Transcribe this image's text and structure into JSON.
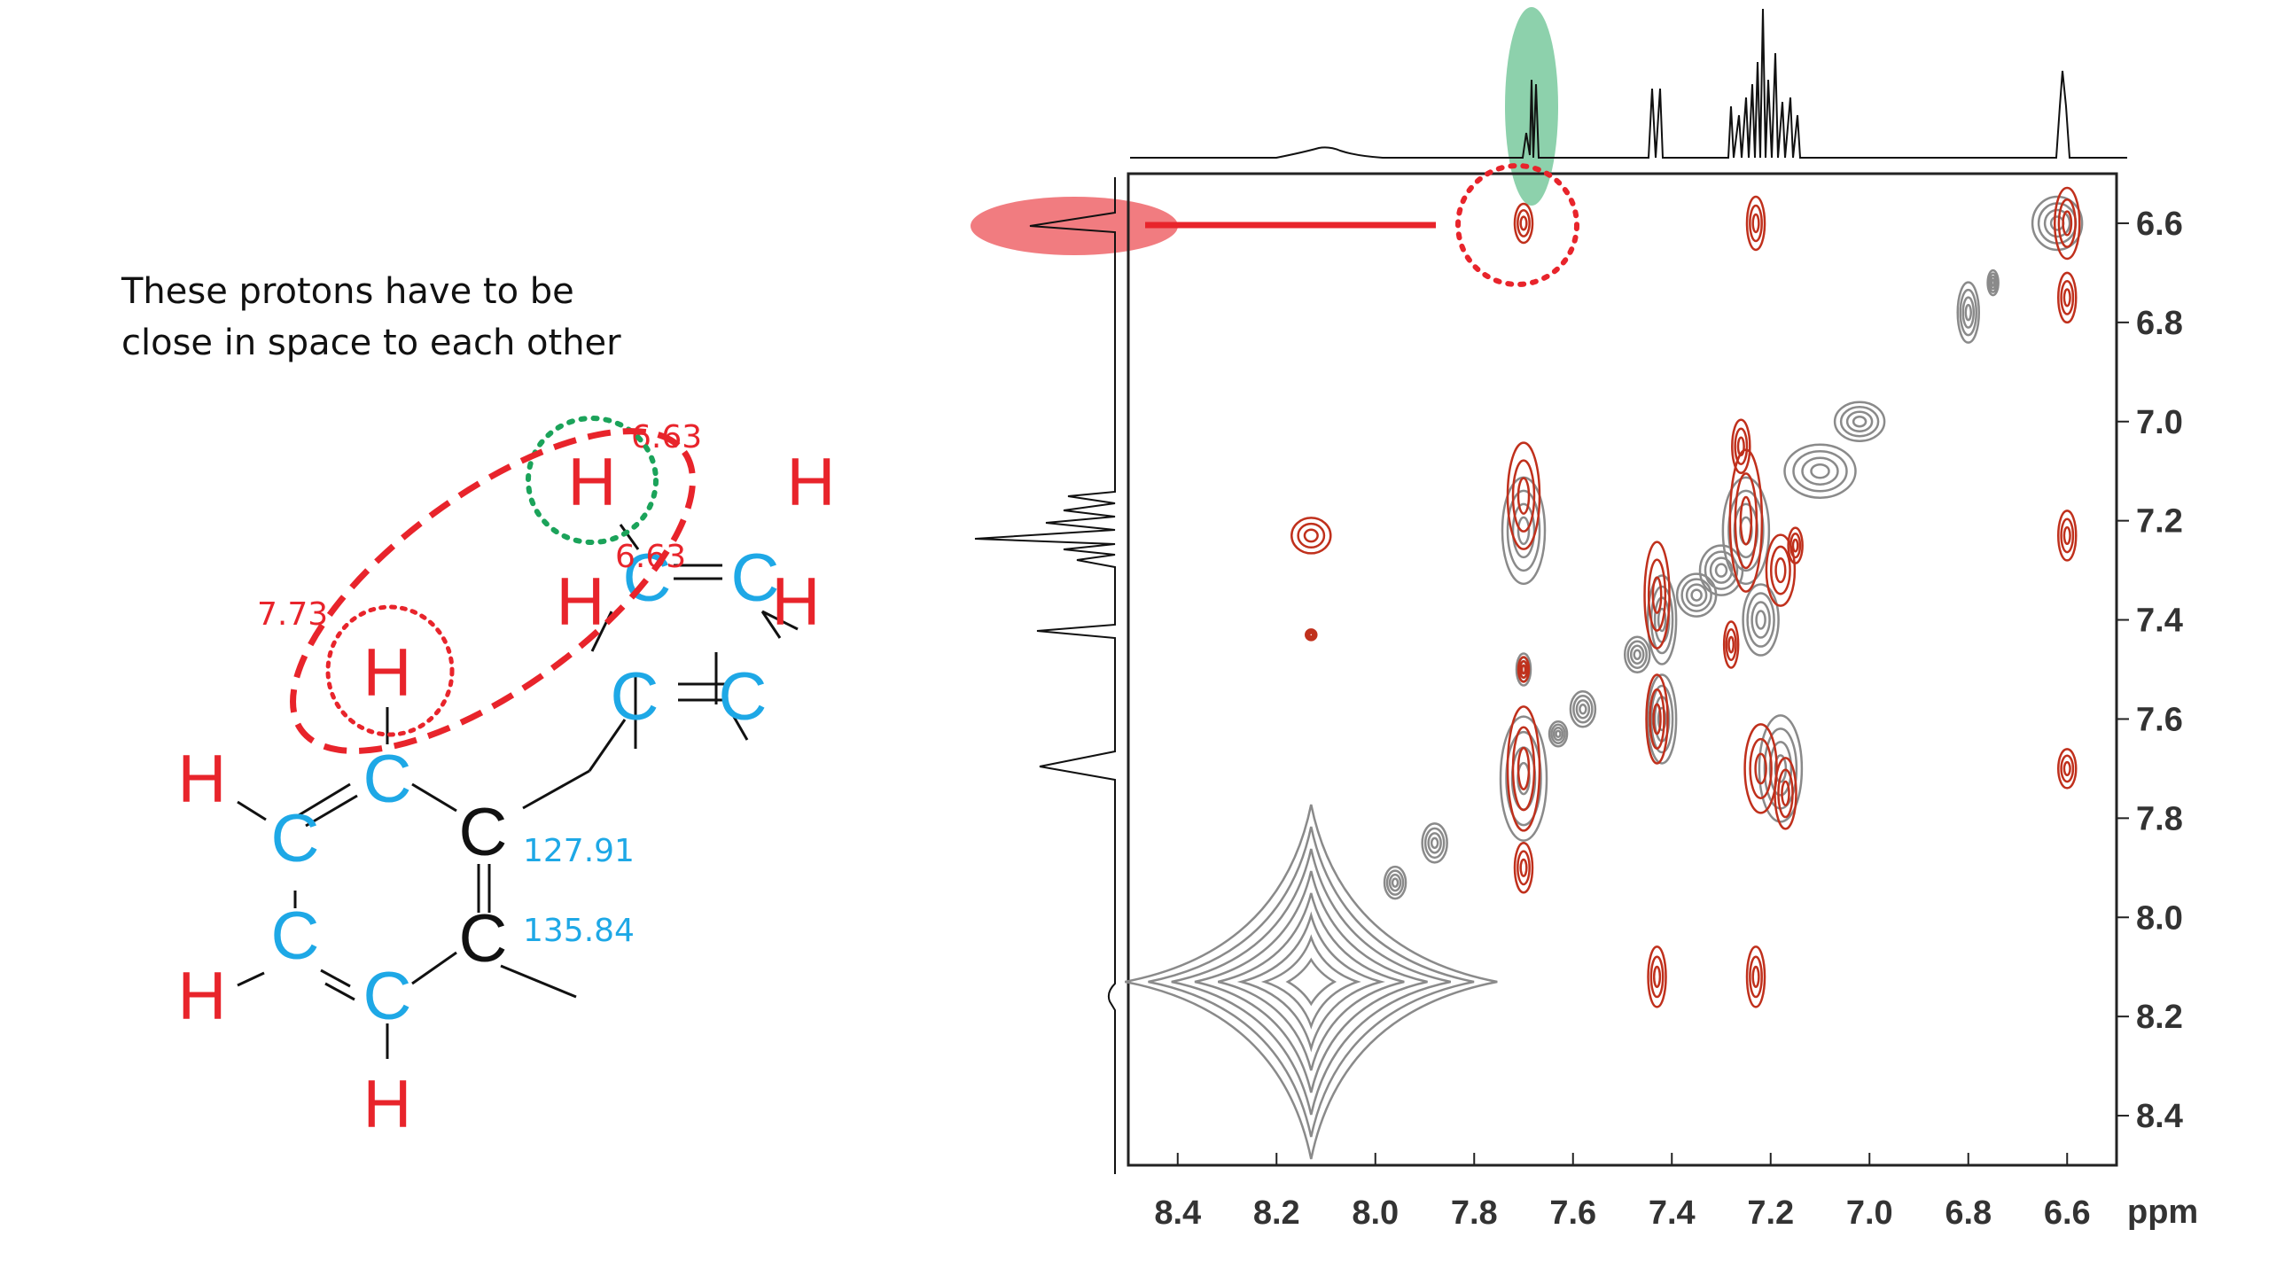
{
  "annotation": {
    "line1": "These protons have to be",
    "line2": "close in space to each other"
  },
  "molecule": {
    "atom_H": "H",
    "atom_C": "C",
    "shift_labels": [
      "6.63",
      "6.63",
      "7.73"
    ],
    "carbon_shift_labels": [
      "127.91",
      "135.84"
    ]
  },
  "spectrum": {
    "axis_unit": "ppm",
    "x_ticks": [
      "8.4",
      "8.2",
      "8.0",
      "7.8",
      "7.6",
      "7.4",
      "7.2",
      "7.0",
      "6.8",
      "6.6"
    ],
    "y_ticks": [
      "6.6",
      "6.8",
      "7.0",
      "7.2",
      "7.4",
      "7.6",
      "7.8",
      "8.0",
      "8.2",
      "8.4"
    ],
    "x_range_ppm": [
      8.5,
      6.5
    ],
    "y_range_ppm": [
      6.5,
      8.5
    ],
    "highlight_cross_peak_ppm": [
      7.7,
      6.6
    ]
  },
  "colors": {
    "red": "#e8242b",
    "cyan": "#1ea8e6",
    "green": "#1ba35a",
    "peak_red": "#c0301c",
    "peak_gray": "#8a8a8a"
  }
}
